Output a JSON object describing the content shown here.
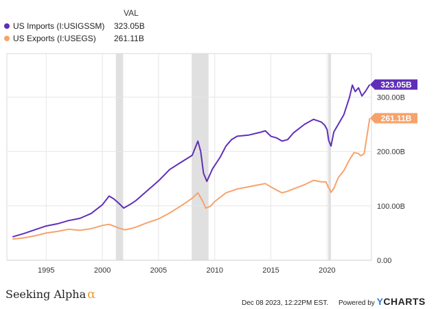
{
  "legend": {
    "value_header": "VAL"
  },
  "colors": {
    "imports": "#5f2eb8",
    "exports": "#f7a26b",
    "recession": "#e0e0e0",
    "grid": "#e6e6e6"
  },
  "chart_data": {
    "type": "line",
    "x_ticks": [
      "1995",
      "2000",
      "2005",
      "2010",
      "2015",
      "2020"
    ],
    "y_ticks": [
      "0.00",
      "100.00B",
      "200.00B",
      "300.00B"
    ],
    "ylim": [
      0,
      380
    ],
    "xlim": [
      1991.5,
      2023.95
    ],
    "grid": true,
    "recessions": [
      [
        2001.2,
        2001.85
      ],
      [
        2007.95,
        2009.45
      ],
      [
        2020.1,
        2020.35
      ]
    ],
    "series": [
      {
        "name": "US Imports (I:USIGSSM)",
        "value_label": "323.05B",
        "color": "#5f2eb8",
        "points": [
          [
            1992.0,
            43
          ],
          [
            1993.0,
            49
          ],
          [
            1994.0,
            56
          ],
          [
            1995.0,
            63
          ],
          [
            1996.0,
            67
          ],
          [
            1997.0,
            73
          ],
          [
            1998.0,
            77
          ],
          [
            1999.0,
            86
          ],
          [
            2000.0,
            102
          ],
          [
            2000.6,
            118
          ],
          [
            2001.0,
            113
          ],
          [
            2001.4,
            106
          ],
          [
            2001.9,
            96
          ],
          [
            2002.5,
            103
          ],
          [
            2003.0,
            110
          ],
          [
            2004.0,
            128
          ],
          [
            2005.0,
            146
          ],
          [
            2006.0,
            167
          ],
          [
            2007.0,
            180
          ],
          [
            2008.0,
            193
          ],
          [
            2008.5,
            219
          ],
          [
            2008.75,
            200
          ],
          [
            2009.0,
            160
          ],
          [
            2009.3,
            145
          ],
          [
            2009.8,
            168
          ],
          [
            2010.5,
            190
          ],
          [
            2011.0,
            210
          ],
          [
            2011.5,
            222
          ],
          [
            2012.0,
            228
          ],
          [
            2013.0,
            230
          ],
          [
            2014.0,
            235
          ],
          [
            2014.5,
            238
          ],
          [
            2015.0,
            228
          ],
          [
            2015.5,
            225
          ],
          [
            2016.0,
            219
          ],
          [
            2016.5,
            222
          ],
          [
            2017.0,
            234
          ],
          [
            2018.0,
            250
          ],
          [
            2018.8,
            259
          ],
          [
            2019.5,
            254
          ],
          [
            2019.8,
            248
          ],
          [
            2020.0,
            240
          ],
          [
            2020.15,
            220
          ],
          [
            2020.35,
            210
          ],
          [
            2020.6,
            236
          ],
          [
            2021.0,
            250
          ],
          [
            2021.5,
            268
          ],
          [
            2022.0,
            300
          ],
          [
            2022.25,
            322
          ],
          [
            2022.5,
            310
          ],
          [
            2022.8,
            317
          ],
          [
            2023.1,
            302
          ],
          [
            2023.4,
            310
          ],
          [
            2023.8,
            323.05
          ]
        ]
      },
      {
        "name": "US Exports (I:USEGS)",
        "value_label": "261.11B",
        "color": "#f7a26b",
        "points": [
          [
            1992.0,
            39
          ],
          [
            1993.0,
            41
          ],
          [
            1994.0,
            45
          ],
          [
            1995.0,
            50
          ],
          [
            1996.0,
            53
          ],
          [
            1997.0,
            57
          ],
          [
            1998.0,
            55
          ],
          [
            1999.0,
            58
          ],
          [
            2000.0,
            64
          ],
          [
            2000.6,
            66
          ],
          [
            2001.0,
            63
          ],
          [
            2001.5,
            59
          ],
          [
            2002.0,
            56
          ],
          [
            2002.5,
            58
          ],
          [
            2003.0,
            61
          ],
          [
            2004.0,
            69
          ],
          [
            2005.0,
            76
          ],
          [
            2006.0,
            87
          ],
          [
            2007.0,
            100
          ],
          [
            2008.0,
            114
          ],
          [
            2008.5,
            124
          ],
          [
            2008.9,
            110
          ],
          [
            2009.2,
            96
          ],
          [
            2009.6,
            99
          ],
          [
            2010.0,
            108
          ],
          [
            2011.0,
            124
          ],
          [
            2012.0,
            131
          ],
          [
            2013.0,
            135
          ],
          [
            2014.0,
            139
          ],
          [
            2014.5,
            141
          ],
          [
            2015.0,
            135
          ],
          [
            2015.5,
            129
          ],
          [
            2016.0,
            124
          ],
          [
            2016.5,
            127
          ],
          [
            2017.0,
            131
          ],
          [
            2018.0,
            139
          ],
          [
            2018.8,
            147
          ],
          [
            2019.5,
            144
          ],
          [
            2019.9,
            144
          ],
          [
            2020.1,
            135
          ],
          [
            2020.35,
            125
          ],
          [
            2020.6,
            132
          ],
          [
            2021.0,
            152
          ],
          [
            2021.5,
            165
          ],
          [
            2022.0,
            185
          ],
          [
            2022.4,
            198
          ],
          [
            2022.8,
            196
          ],
          [
            2023.0,
            192
          ],
          [
            2023.3,
            196
          ],
          [
            2023.8,
            261.11
          ]
        ]
      }
    ]
  },
  "footer": {
    "brand_left": "Seeking Alpha",
    "alpha_symbol": "α",
    "timestamp": "Dec 08 2023, 12:22PM EST.",
    "powered_by": "Powered by",
    "brand_right_y": "Y",
    "brand_right_rest": "CHARTS"
  }
}
